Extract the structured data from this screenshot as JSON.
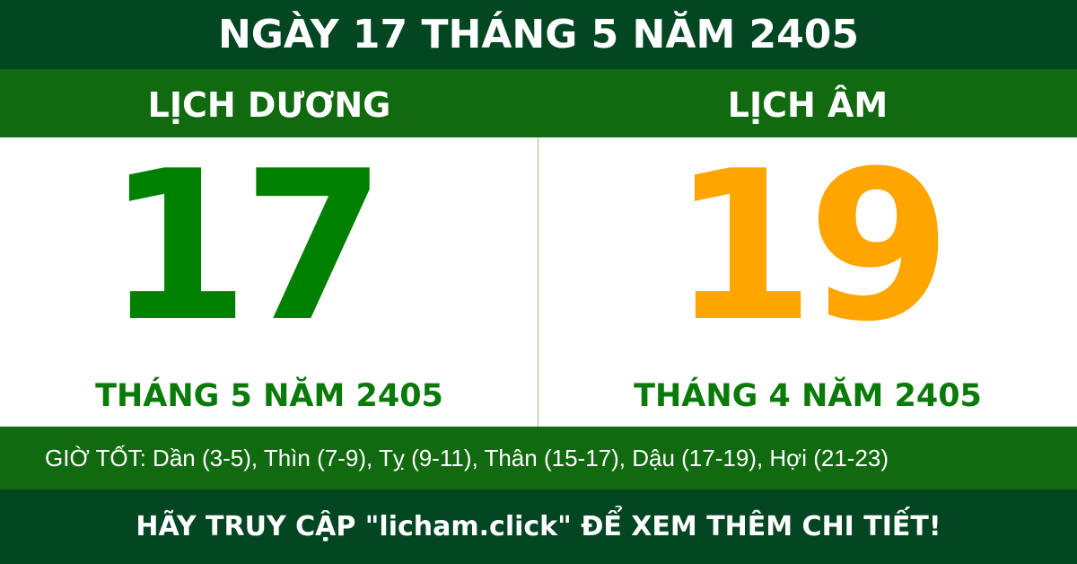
{
  "header": {
    "title": "NGÀY 17 THÁNG 5 NĂM 2405"
  },
  "solar": {
    "label": "LỊCH DƯƠNG",
    "day": "17",
    "month_year": "THÁNG 5 NĂM 2405"
  },
  "lunar": {
    "label": "LỊCH ÂM",
    "day": "19",
    "month_year": "THÁNG 4 NĂM 2405"
  },
  "good_hours": "GIỜ TỐT: Dần (3-5), Thìn (7-9), Tỵ (9-11), Thân (15-17), Dậu (17-19), Hợi (21-23)",
  "footer": {
    "cta": "HÃY TRUY CẬP \"licham.click\" ĐỂ XEM THÊM CHI TIẾT!"
  },
  "colors": {
    "dark_green": "#034622",
    "band_green": "#116a10",
    "solar_day": "#008000",
    "lunar_day": "#ffa500"
  }
}
